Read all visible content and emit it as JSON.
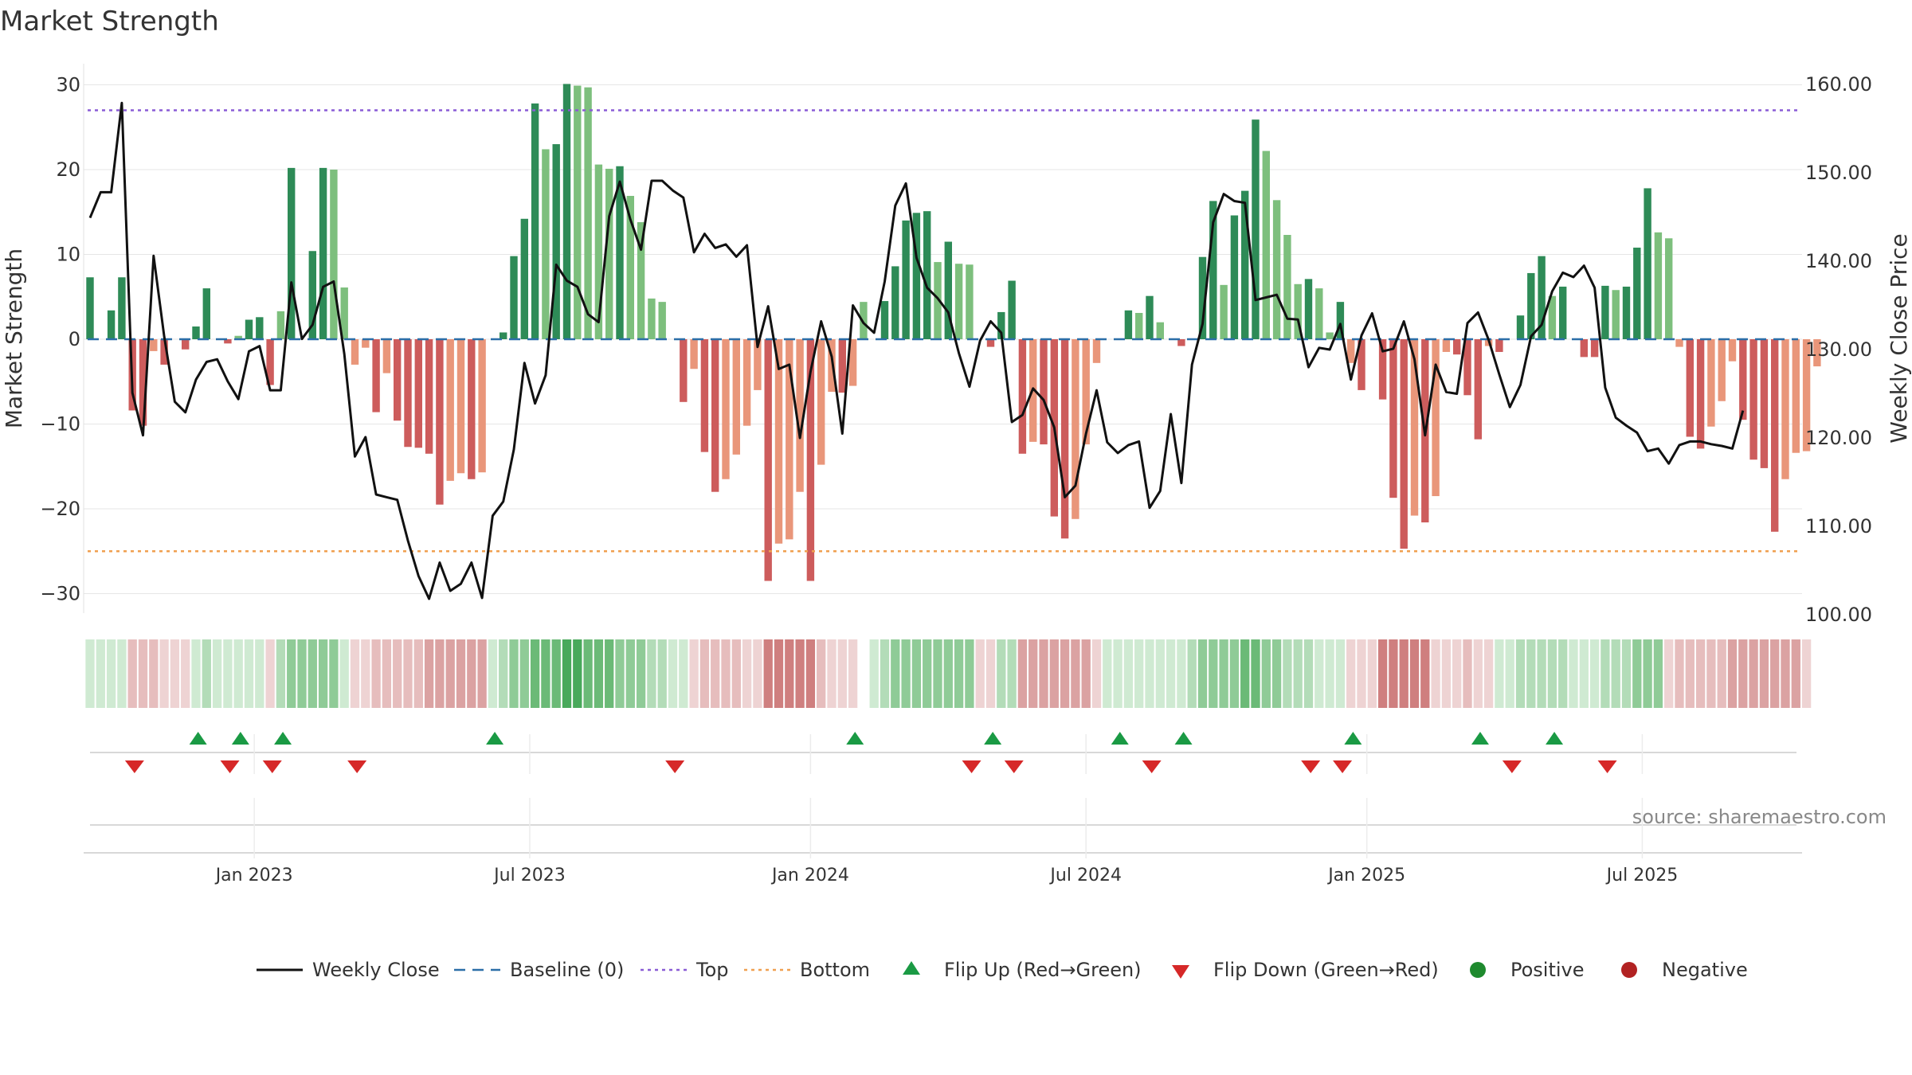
{
  "chart_data": {
    "type": "bar",
    "title": "Market Strength",
    "ylabel_left": "Market Strength",
    "ylabel_right": "Weekly Close Price",
    "ylim_left": [
      -33,
      33
    ],
    "ylim_right": [
      100,
      161.5
    ],
    "left_ticks": [
      30,
      20,
      10,
      0,
      -10,
      -20,
      -30
    ],
    "left_tick_labels": [
      "30",
      "20",
      "10",
      "0",
      "−10",
      "−20",
      "−30"
    ],
    "right_ticks": [
      160,
      150,
      140,
      130,
      120,
      110,
      100
    ],
    "right_tick_labels": [
      "160.00",
      "150.00",
      "140.00",
      "130.00",
      "120.00",
      "110.00",
      "100.00"
    ],
    "date_ticks": [
      {
        "week": 15.5,
        "label": "Jan 2023"
      },
      {
        "week": 41.5,
        "label": "Jul 2023"
      },
      {
        "week": 68,
        "label": "Jan 2024"
      },
      {
        "week": 94,
        "label": "Jul 2024"
      },
      {
        "week": 120.5,
        "label": "Jan 2025"
      },
      {
        "week": 146.5,
        "label": "Jul 2025"
      }
    ],
    "top_level": 27,
    "bottom_level": -25,
    "baseline": 0,
    "strength": [
      7.3,
      0,
      3.4,
      7.3,
      -8.4,
      -10.2,
      -1.4,
      -3,
      0,
      -1.2,
      1.5,
      6,
      0,
      -0.5,
      0.4,
      2.3,
      2.6,
      -5.4,
      3.3,
      20.2,
      0,
      10.4,
      20.2,
      20,
      6.1,
      -3,
      -1,
      -8.6,
      -4,
      -9.6,
      -12.7,
      -12.8,
      -13.5,
      -19.5,
      -16.7,
      -15.8,
      -16.5,
      -15.7,
      0,
      0.8,
      9.8,
      14.2,
      27.8,
      22.4,
      23,
      30.1,
      29.9,
      29.7,
      20.6,
      20.1,
      20.4,
      16.9,
      13.8,
      4.8,
      4.4,
      0,
      -7.4,
      -3.5,
      -13.3,
      -18,
      -16.5,
      -13.6,
      -10.2,
      -6,
      -28.5,
      -24.1,
      -23.6,
      -18,
      -28.5,
      -14.8,
      -6.2,
      -6.3,
      -5.5,
      4.4,
      0,
      4.5,
      8.6,
      14,
      14.9,
      15.1,
      9.1,
      11.5,
      8.9,
      8.8,
      0,
      -0.9,
      3.2,
      6.9,
      -13.5,
      -12.1,
      -12.4,
      -20.9,
      -23.5,
      -21.2,
      -12.4,
      -2.8,
      0,
      0,
      3.4,
      3.1,
      5.1,
      2,
      0,
      -0.8,
      0,
      9.7,
      16.3,
      6.4,
      14.6,
      17.5,
      25.9,
      22.2,
      16.4,
      12.3,
      6.5,
      7.1,
      6,
      0.8,
      4.4,
      -2.8,
      -6,
      0,
      -7.1,
      -18.7,
      -24.7,
      -20.8,
      -21.6,
      -18.5,
      -1.5,
      -1.8,
      -6.6,
      -11.8,
      -0.8,
      -1.5,
      0,
      2.8,
      7.8,
      9.8,
      5.1,
      6.2,
      0,
      -2.1,
      -2.1,
      6.3,
      5.8,
      6.2,
      10.8,
      17.8,
      12.6,
      11.9,
      -0.9,
      -11.5,
      -12.9,
      -10.3,
      -7.3,
      -2.6,
      -9.5,
      -14.2,
      -15.2,
      -22.7,
      -16.5,
      -13.4,
      -13.2,
      -3.2
    ],
    "weekly_close": [
      144.9,
      147.8,
      147.8,
      157.9,
      125.1,
      120.3,
      140.6,
      131.5,
      124.1,
      122.9,
      126.6,
      128.6,
      128.9,
      126.4,
      124.4,
      129.8,
      130.4,
      125.4,
      125.4,
      137.6,
      131.2,
      132.8,
      137.1,
      137.7,
      129.5,
      117.9,
      120.1,
      113.6,
      113.3,
      113,
      108.4,
      104.4,
      101.8,
      105.9,
      102.7,
      103.5,
      105.9,
      101.9,
      111.2,
      112.8,
      118.7,
      128.5,
      123.9,
      127.1,
      139.6,
      137.8,
      137.1,
      134,
      133.1,
      145.1,
      149,
      144.7,
      141.3,
      149.1,
      149.1,
      148,
      147.2,
      141,
      143.1,
      141.5,
      141.9,
      140.5,
      141.8,
      130.3,
      134.9,
      127.8,
      128.3,
      120,
      127.5,
      133.2,
      129.2,
      120.5,
      135,
      133,
      131.9,
      137.7,
      146.3,
      148.8,
      140.4,
      137,
      135.8,
      134.2,
      129.6,
      125.8,
      131,
      133.2,
      131.9,
      121.8,
      122.6,
      125.6,
      124.3,
      121.2,
      113.3,
      114.6,
      120.5,
      125.4,
      119.5,
      118.3,
      119.2,
      119.6,
      112.1,
      114,
      122.7,
      114.9,
      128.3,
      132.9,
      144.4,
      147.6,
      146.8,
      146.6,
      135.6,
      135.9,
      136.2,
      133.5,
      133.4,
      128,
      130.2,
      130,
      132.9,
      126.6,
      131.6,
      134.1,
      129.8,
      130.1,
      133.2,
      128.9,
      120.3,
      128.3,
      125.2,
      125,
      133,
      134.2,
      131.1,
      127.2,
      123.5,
      126,
      131.5,
      132.8,
      136.6,
      138.7,
      138.2,
      139.5,
      137,
      125.7,
      122.3,
      121.4,
      120.6,
      118.5,
      118.8,
      117.1,
      119.2,
      119.6,
      119.6,
      119.3,
      119.1,
      118.8,
      123.1
    ],
    "composite_intensity": [
      1,
      1,
      1,
      1,
      -2,
      -2,
      -2,
      -1,
      -1,
      -1,
      1,
      2,
      1,
      1,
      1,
      1,
      1,
      -1,
      2,
      3,
      3,
      3,
      3,
      3,
      1,
      -1,
      -1,
      -2,
      -2,
      -2,
      -2,
      -2,
      -3,
      -3,
      -3,
      -3,
      -3,
      -3,
      1,
      2,
      3,
      3,
      4,
      4,
      4,
      5,
      5,
      4,
      4,
      4,
      3,
      3,
      3,
      2,
      2,
      1,
      1,
      -1,
      -2,
      -2,
      -2,
      -2,
      -1,
      -1,
      -4,
      -4,
      -4,
      -4,
      -4,
      -2,
      -1,
      -1,
      -1,
      0,
      1,
      2,
      3,
      3,
      3,
      3,
      3,
      3,
      3,
      3,
      -1,
      -1,
      2,
      2,
      -3,
      -3,
      -3,
      -3,
      -3,
      -3,
      -3,
      -1,
      1,
      1,
      1,
      1,
      1,
      1,
      1,
      1,
      2,
      3,
      3,
      3,
      3,
      4,
      4,
      3,
      3,
      2,
      2,
      2,
      1,
      1,
      1,
      -1,
      -1,
      -1,
      -4,
      -4,
      -4,
      -4,
      -4,
      -1,
      -1,
      -1,
      -2,
      -1,
      -1,
      1,
      1,
      2,
      2,
      2,
      2,
      2,
      1,
      1,
      1,
      2,
      2,
      2,
      3,
      3,
      3,
      -1,
      -2,
      -2,
      -2,
      -2,
      -2,
      -3,
      -3,
      -3,
      -3,
      -3,
      -3,
      -3,
      -1
    ],
    "flip_up_weeks": [
      10.2,
      14.2,
      18.2,
      38.2,
      72.2,
      85.2,
      97.2,
      103.2,
      119.2,
      131.2,
      138.2
    ],
    "flip_down_weeks": [
      4.2,
      13.2,
      17.2,
      25.2,
      55.2,
      83.2,
      87.2,
      100.2,
      115.2,
      118.2,
      134.2,
      143.2
    ],
    "legend": [
      {
        "label": "Weekly Close",
        "kind": "line",
        "color": "#111111"
      },
      {
        "label": "Baseline (0)",
        "kind": "dash",
        "color": "#2b6ea8"
      },
      {
        "label": "Top",
        "kind": "dot",
        "color": "#8a5cd6"
      },
      {
        "label": "Bottom",
        "kind": "dot",
        "color": "#f0a050"
      },
      {
        "label": "Flip Up (Red→Green)",
        "kind": "tri-up",
        "color": "#1a9a44"
      },
      {
        "label": "Flip Down (Green→Red)",
        "kind": "tri-down",
        "color": "#d62828"
      },
      {
        "label": "Positive",
        "kind": "circle",
        "color": "#1e8a2e"
      },
      {
        "label": "Negative",
        "kind": "circle",
        "color": "#b22222"
      }
    ],
    "source": "source: sharemaestro.com",
    "colors": {
      "pos_strong": "#2e8b57",
      "pos_light": "#7dbf7d",
      "neg_strong": "#cd5c5c",
      "neg_light": "#e9967a",
      "close_line": "#111111",
      "baseline": "#2b6ea8",
      "top_line": "#8a5cd6",
      "bottom_line": "#f0a050",
      "grid": "#e6e6e6",
      "flip_up": "#1a9a44",
      "flip_down": "#d62828"
    }
  }
}
